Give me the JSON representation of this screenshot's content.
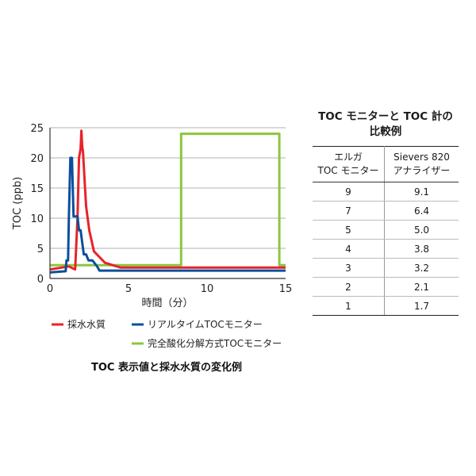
{
  "chart_data": {
    "type": "line",
    "ylabel": "TOC (ppb)",
    "xlabel": "時間（分）",
    "title": "",
    "caption": "TOC 表示値と採水水質の変化例",
    "xlim": [
      0,
      15
    ],
    "ylim": [
      0,
      25
    ],
    "xticks": [
      0,
      5,
      10,
      15
    ],
    "yticks": [
      0,
      5,
      10,
      15,
      20,
      25
    ],
    "grid": true,
    "legend": "bottom",
    "series": [
      {
        "name": "採水水質",
        "color": "#e8222a",
        "x": [
          0,
          1.2,
          1.6,
          1.75,
          1.85,
          1.95,
          2.0,
          2.05,
          2.1,
          2.3,
          2.5,
          2.8,
          3.5,
          4.5,
          15
        ],
        "y": [
          1.5,
          2.0,
          1.5,
          10,
          20,
          21.5,
          24.5,
          22,
          21,
          12,
          8,
          4.5,
          2.6,
          1.8,
          1.8
        ]
      },
      {
        "name": "リアルタイムTOCモニター",
        "color": "#0a4f9c",
        "x": [
          0,
          1.0,
          1.05,
          1.15,
          1.2,
          1.3,
          1.4,
          1.5,
          1.6,
          1.75,
          1.85,
          1.95,
          2.05,
          2.15,
          2.3,
          2.45,
          2.7,
          3.0,
          3.15,
          3.3,
          15
        ],
        "y": [
          1.0,
          1.2,
          3,
          3,
          10,
          20,
          20,
          10.3,
          10.3,
          10.3,
          8,
          8,
          6,
          4,
          4,
          3,
          3,
          2,
          1.3,
          1.3,
          1.3
        ]
      },
      {
        "name": "完全酸化分解方式TOCモニター",
        "color": "#8cc63f",
        "x": [
          0,
          8.35,
          8.35,
          14.6,
          14.6,
          15
        ],
        "y": [
          2.2,
          2.2,
          24,
          24,
          2.2,
          2.2
        ]
      }
    ]
  },
  "table": {
    "title": "TOC モニターと TOC 計の\n比較例",
    "headers": [
      "エルガ\nTOC モニター",
      "Sievers 820\nアナライザー"
    ],
    "rows": [
      [
        "9",
        "9.1"
      ],
      [
        "7",
        "6.4"
      ],
      [
        "5",
        "5.0"
      ],
      [
        "4",
        "3.8"
      ],
      [
        "3",
        "3.2"
      ],
      [
        "2",
        "2.1"
      ],
      [
        "1",
        "1.7"
      ]
    ]
  }
}
